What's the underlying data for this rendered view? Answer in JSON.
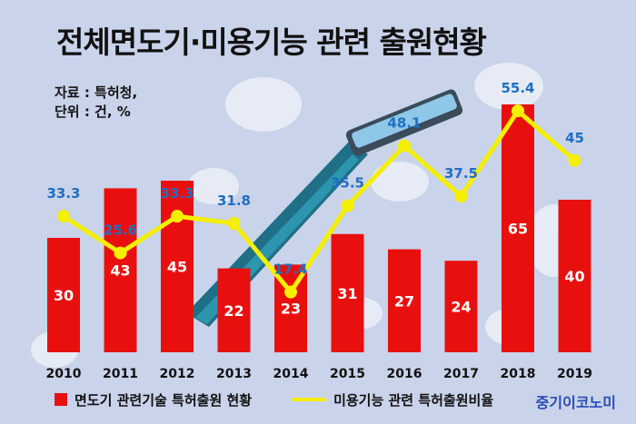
{
  "title": "전체면도기·미용기능 관련  출원현황",
  "source": {
    "line1": "자료 : 특허청,",
    "line2": "단위 : 건, %"
  },
  "legend": {
    "bar_label": "면도기 관련기술 특허출원 현황",
    "line_label": "미용기능 관련 특허출원비율"
  },
  "brand": "중기이코노미",
  "colors": {
    "bar": "#e8100f",
    "line": "#f5f000",
    "line_label": "#1f6fc0",
    "background": "#c9d3ea"
  },
  "chart_data": {
    "type": "bar",
    "categories": [
      "2010",
      "2011",
      "2012",
      "2013",
      "2014",
      "2015",
      "2016",
      "2017",
      "2018",
      "2019"
    ],
    "series": [
      {
        "name": "면도기 관련기술 특허출원 현황",
        "type": "bar",
        "values": [
          30,
          43,
          45,
          22,
          23,
          31,
          27,
          24,
          65,
          40
        ]
      },
      {
        "name": "미용기능 관련 특허출원비율",
        "type": "line",
        "values": [
          33.3,
          25.6,
          33.3,
          31.8,
          17.4,
          35.5,
          48.1,
          37.5,
          55.4,
          45
        ]
      }
    ],
    "bar_labels": [
      "30",
      "43",
      "45",
      "22",
      "23",
      "31",
      "27",
      "24",
      "65",
      "40"
    ],
    "line_labels": [
      "33.3",
      "25.6",
      "33.3",
      "31.8",
      "17.4",
      "35.5",
      "48.1",
      "37.5",
      "55.4",
      "45"
    ],
    "grid": false,
    "legend_position": "bottom"
  }
}
